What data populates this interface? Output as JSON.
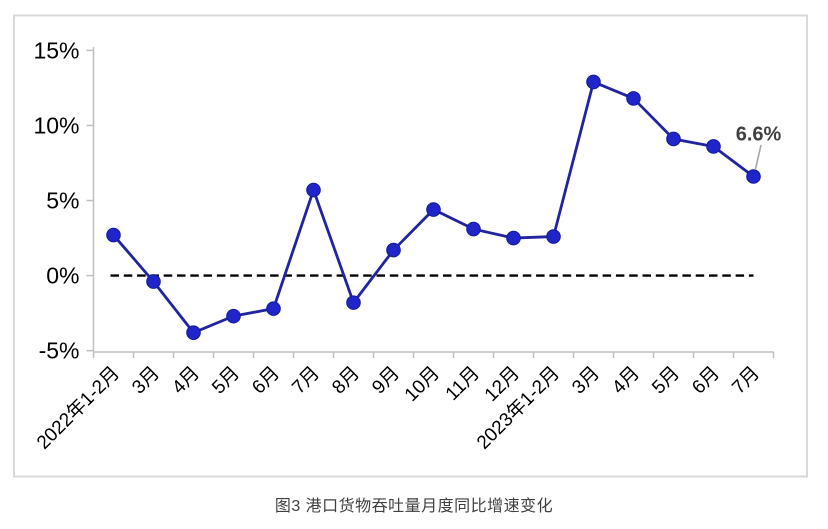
{
  "figure_caption": "图3 港口货物吞吐量月度同比增速变化",
  "chart_data": {
    "type": "line",
    "categories": [
      "2022年1-2月",
      "3月",
      "4月",
      "5月",
      "6月",
      "7月",
      "8月",
      "9月",
      "10月",
      "11月",
      "12月",
      "2023年1-2月",
      "3月",
      "4月",
      "5月",
      "6月",
      "7月"
    ],
    "values": [
      2.7,
      -0.4,
      -3.8,
      -2.7,
      -2.2,
      5.7,
      -1.8,
      1.7,
      4.4,
      3.1,
      2.5,
      2.6,
      12.9,
      11.8,
      9.1,
      8.6,
      6.6
    ],
    "last_point_label": "6.6%",
    "y_axis": {
      "ticks": [
        "15%",
        "10%",
        "5%",
        "0%",
        "-5%"
      ],
      "values": [
        15,
        10,
        5,
        0,
        -5
      ],
      "range": [
        -5,
        15
      ]
    },
    "zero_line": true,
    "grid": false,
    "legend": false,
    "colors": {
      "line": "#20249f",
      "marker": "#1f25c8",
      "marker_edge": "#141a96",
      "axis": "#bfbfbf",
      "zero_line": "#000000",
      "tick_label": "#000000",
      "annotation": "#404040",
      "leader": "#a6a6a6",
      "frame": "#d9d9d9",
      "caption": "#404040"
    }
  }
}
